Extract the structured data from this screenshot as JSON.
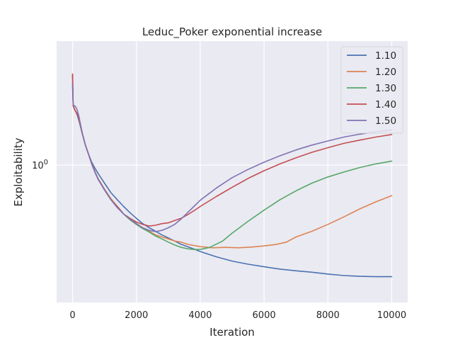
{
  "chart_data": {
    "type": "line",
    "title": "Leduc_Poker exponential increase",
    "xlabel": "Iteration",
    "ylabel": "Exploitability",
    "xlim": [
      -500,
      10500
    ],
    "ylim": [
      0.1,
      8.0
    ],
    "yscale": "log",
    "xticks": [
      0,
      2000,
      4000,
      6000,
      8000,
      10000
    ],
    "xtick_labels": [
      "0",
      "2000",
      "4000",
      "6000",
      "8000",
      "10000"
    ],
    "yticks": [
      1.0
    ],
    "ytick_labels": [
      "10^0"
    ],
    "grid": true,
    "legend_position": "top-right",
    "background": "#eaeaf2",
    "series": [
      {
        "name": "1.10",
        "color": "#4c72b0",
        "x": [
          0,
          20,
          60,
          100,
          150,
          200,
          300,
          400,
          500,
          600,
          700,
          800,
          1000,
          1200,
          1400,
          1600,
          1800,
          2000,
          2200,
          2400,
          2600,
          2800,
          3000,
          3200,
          3400,
          3600,
          3800,
          4000,
          4500,
          5000,
          5500,
          6000,
          6500,
          7000,
          7500,
          8000,
          8500,
          9000,
          9500,
          10000
        ],
        "y": [
          4.5,
          2.7,
          2.55,
          2.45,
          2.3,
          2.1,
          1.7,
          1.4,
          1.2,
          1.05,
          0.95,
          0.87,
          0.74,
          0.63,
          0.56,
          0.5,
          0.45,
          0.41,
          0.375,
          0.35,
          0.33,
          0.31,
          0.295,
          0.28,
          0.265,
          0.255,
          0.245,
          0.235,
          0.215,
          0.2,
          0.19,
          0.182,
          0.175,
          0.17,
          0.166,
          0.161,
          0.157,
          0.155,
          0.154,
          0.154
        ]
      },
      {
        "name": "1.20",
        "color": "#dd8452",
        "x": [
          0,
          20,
          60,
          100,
          150,
          200,
          300,
          400,
          500,
          600,
          700,
          800,
          1000,
          1200,
          1400,
          1600,
          1800,
          2000,
          2200,
          2400,
          2600,
          2800,
          3000,
          3200,
          3400,
          3600,
          3800,
          4000,
          4400,
          4800,
          5200,
          5600,
          6000,
          6400,
          6700,
          7000,
          7500,
          8000,
          8500,
          9000,
          9500,
          10000
        ],
        "y": [
          4.6,
          2.7,
          2.55,
          2.45,
          2.35,
          2.15,
          1.72,
          1.4,
          1.2,
          1.03,
          0.9,
          0.8,
          0.67,
          0.57,
          0.5,
          0.44,
          0.4,
          0.37,
          0.345,
          0.33,
          0.31,
          0.3,
          0.29,
          0.28,
          0.275,
          0.265,
          0.26,
          0.255,
          0.25,
          0.252,
          0.25,
          0.253,
          0.258,
          0.265,
          0.275,
          0.3,
          0.33,
          0.37,
          0.42,
          0.48,
          0.54,
          0.6
        ]
      },
      {
        "name": "1.30",
        "color": "#55a868",
        "x": [
          0,
          20,
          60,
          100,
          150,
          200,
          300,
          400,
          500,
          600,
          700,
          800,
          1000,
          1200,
          1400,
          1600,
          1800,
          2000,
          2200,
          2400,
          2600,
          2800,
          3000,
          3200,
          3400,
          3600,
          3800,
          4000,
          4300,
          4700,
          5000,
          5500,
          6000,
          6500,
          7000,
          7500,
          8000,
          8500,
          9000,
          9500,
          10000
        ],
        "y": [
          3.8,
          2.7,
          2.55,
          2.45,
          2.35,
          2.15,
          1.72,
          1.4,
          1.2,
          1.02,
          0.89,
          0.79,
          0.66,
          0.56,
          0.5,
          0.44,
          0.4,
          0.37,
          0.345,
          0.325,
          0.305,
          0.29,
          0.275,
          0.262,
          0.252,
          0.246,
          0.243,
          0.243,
          0.252,
          0.28,
          0.32,
          0.39,
          0.47,
          0.56,
          0.65,
          0.74,
          0.82,
          0.89,
          0.96,
          1.02,
          1.07
        ]
      },
      {
        "name": "1.40",
        "color": "#c44e52",
        "x": [
          0,
          20,
          60,
          100,
          150,
          200,
          300,
          400,
          500,
          600,
          700,
          800,
          1000,
          1200,
          1400,
          1600,
          1800,
          2000,
          2200,
          2400,
          2600,
          2800,
          3000,
          3200,
          3400,
          3600,
          3800,
          4000,
          4500,
          5000,
          5500,
          6000,
          6500,
          7000,
          7500,
          8000,
          8500,
          9000,
          9500,
          10000
        ],
        "y": [
          4.6,
          2.7,
          2.55,
          2.45,
          2.35,
          2.15,
          1.72,
          1.4,
          1.2,
          1.02,
          0.89,
          0.79,
          0.66,
          0.56,
          0.5,
          0.44,
          0.41,
          0.385,
          0.37,
          0.36,
          0.365,
          0.375,
          0.38,
          0.395,
          0.41,
          0.435,
          0.465,
          0.5,
          0.59,
          0.69,
          0.8,
          0.91,
          1.02,
          1.13,
          1.24,
          1.34,
          1.44,
          1.52,
          1.6,
          1.67
        ]
      },
      {
        "name": "1.50",
        "color": "#8172b3",
        "x": [
          0,
          20,
          60,
          100,
          150,
          200,
          300,
          400,
          500,
          600,
          700,
          800,
          1000,
          1200,
          1400,
          1600,
          1800,
          2000,
          2200,
          2400,
          2600,
          2800,
          3000,
          3200,
          3400,
          3600,
          3800,
          4000,
          4500,
          5000,
          5500,
          6000,
          6500,
          7000,
          7500,
          8000,
          8500,
          9000,
          9500,
          10000
        ],
        "y": [
          3.9,
          2.75,
          2.7,
          2.65,
          2.5,
          2.25,
          1.72,
          1.4,
          1.2,
          1.02,
          0.89,
          0.79,
          0.66,
          0.56,
          0.49,
          0.44,
          0.405,
          0.375,
          0.35,
          0.335,
          0.328,
          0.335,
          0.35,
          0.37,
          0.405,
          0.45,
          0.5,
          0.555,
          0.68,
          0.81,
          0.93,
          1.05,
          1.17,
          1.29,
          1.4,
          1.5,
          1.6,
          1.68,
          1.75,
          1.8
        ]
      }
    ]
  }
}
